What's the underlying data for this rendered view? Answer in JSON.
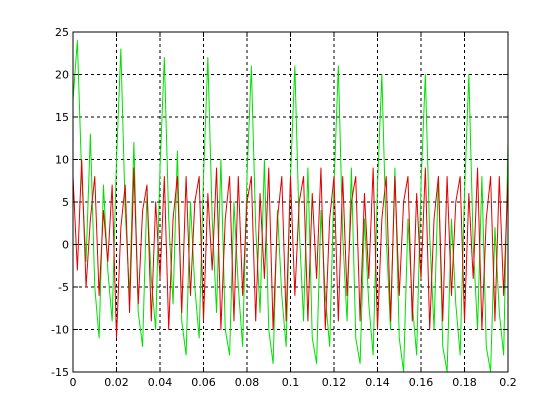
{
  "chart_data": {
    "type": "line",
    "title": "",
    "xlabel": "",
    "ylabel": "",
    "xlim": [
      0,
      0.2
    ],
    "ylim": [
      -15,
      25
    ],
    "grid": true,
    "grid_style": "dashed",
    "x_ticks": [
      "0",
      "0.02",
      "0.04",
      "0.06",
      "0.08",
      "0.1",
      "0.12",
      "0.14",
      "0.16",
      "0.18",
      "0.2"
    ],
    "y_ticks": [
      "-15",
      "-10",
      "-5",
      "0",
      "5",
      "10",
      "15",
      "20",
      "25"
    ],
    "x_tick_values": [
      0,
      0.02,
      0.04,
      0.06,
      0.08,
      0.1,
      0.12,
      0.14,
      0.16,
      0.18,
      0.2
    ],
    "y_tick_values": [
      -15,
      -10,
      -5,
      0,
      5,
      10,
      15,
      20,
      25
    ],
    "series": [
      {
        "color": "#00e000",
        "x": [
          0,
          0.002,
          0.004,
          0.006,
          0.008,
          0.01,
          0.012,
          0.014,
          0.016,
          0.018,
          0.02,
          0.022,
          0.024,
          0.026,
          0.028,
          0.03,
          0.032,
          0.034,
          0.036,
          0.038,
          0.04,
          0.042,
          0.044,
          0.046,
          0.048,
          0.05,
          0.052,
          0.054,
          0.056,
          0.058,
          0.06,
          0.062,
          0.064,
          0.066,
          0.068,
          0.07,
          0.072,
          0.074,
          0.076,
          0.078,
          0.08,
          0.082,
          0.084,
          0.086,
          0.088,
          0.09,
          0.092,
          0.094,
          0.096,
          0.098,
          0.1,
          0.102,
          0.104,
          0.106,
          0.108,
          0.11,
          0.112,
          0.114,
          0.116,
          0.118,
          0.12,
          0.122,
          0.124,
          0.126,
          0.128,
          0.13,
          0.132,
          0.134,
          0.136,
          0.138,
          0.14,
          0.142,
          0.144,
          0.146,
          0.148,
          0.15,
          0.152,
          0.154,
          0.156,
          0.158,
          0.16,
          0.162,
          0.164,
          0.166,
          0.168,
          0.17,
          0.172,
          0.174,
          0.176,
          0.178,
          0.18,
          0.182,
          0.184,
          0.186,
          0.188,
          0.19,
          0.192,
          0.194,
          0.196,
          0.198,
          0.2
        ],
        "y": [
          17,
          24,
          8,
          -2,
          13,
          -5,
          -11,
          7,
          -3,
          -9,
          10,
          23,
          4,
          -6,
          12,
          -8,
          -12,
          6,
          -4,
          -10,
          9,
          22,
          3,
          -7,
          11,
          -9,
          -13,
          5,
          -5,
          -11,
          8,
          22,
          3,
          -8,
          10,
          -10,
          -13,
          5,
          -5,
          -12,
          8,
          21,
          2,
          -8,
          10,
          -10,
          -14,
          4,
          -6,
          -12,
          8,
          21,
          2,
          -9,
          9,
          -11,
          -14,
          4,
          -6,
          -12,
          7,
          21,
          1,
          -9,
          9,
          -11,
          -14,
          3,
          -7,
          -13,
          7,
          20,
          1,
          -10,
          9,
          -11,
          -15,
          3,
          -7,
          -13,
          7,
          20,
          1,
          -10,
          8,
          -12,
          -15,
          3,
          -7,
          -13,
          6,
          20,
          0,
          -10,
          8,
          -12,
          -15,
          2,
          -8,
          -13,
          12
        ]
      },
      {
        "color": "#e00000",
        "x": [
          0,
          0.002,
          0.004,
          0.006,
          0.008,
          0.01,
          0.012,
          0.014,
          0.016,
          0.018,
          0.02,
          0.022,
          0.024,
          0.026,
          0.028,
          0.03,
          0.032,
          0.034,
          0.036,
          0.038,
          0.04,
          0.042,
          0.044,
          0.046,
          0.048,
          0.05,
          0.052,
          0.054,
          0.056,
          0.058,
          0.06,
          0.062,
          0.064,
          0.066,
          0.068,
          0.07,
          0.072,
          0.074,
          0.076,
          0.078,
          0.08,
          0.082,
          0.084,
          0.086,
          0.088,
          0.09,
          0.092,
          0.094,
          0.096,
          0.098,
          0.1,
          0.102,
          0.104,
          0.106,
          0.108,
          0.11,
          0.112,
          0.114,
          0.116,
          0.118,
          0.12,
          0.122,
          0.124,
          0.126,
          0.128,
          0.13,
          0.132,
          0.134,
          0.136,
          0.138,
          0.14,
          0.142,
          0.144,
          0.146,
          0.148,
          0.15,
          0.152,
          0.154,
          0.156,
          0.158,
          0.16,
          0.162,
          0.164,
          0.166,
          0.168,
          0.17,
          0.172,
          0.174,
          0.176,
          0.178,
          0.18,
          0.182,
          0.184,
          0.186,
          0.188,
          0.19,
          0.192,
          0.194,
          0.196,
          0.198,
          0.2
        ],
        "y": [
          8,
          -3,
          10,
          -5,
          3,
          8,
          -6,
          4,
          -2,
          7,
          -11,
          2,
          7,
          -8,
          9,
          -7,
          4,
          7,
          -9,
          5,
          -4,
          8,
          -10,
          3,
          8,
          -8,
          8,
          -6,
          5,
          8,
          -9,
          6,
          -3,
          9,
          -10,
          3,
          8,
          -9,
          8,
          -6,
          5,
          8,
          -9,
          6,
          -4,
          9,
          -10,
          3,
          8,
          -9,
          8,
          -6,
          5,
          8,
          -9,
          6,
          -4,
          9,
          -10,
          3,
          8,
          -9,
          8,
          -6,
          5,
          8,
          -9,
          6,
          -4,
          9,
          -10,
          3,
          8,
          -9,
          8,
          -6,
          5,
          8,
          -9,
          6,
          -4,
          9,
          -10,
          3,
          8,
          -9,
          8,
          -6,
          5,
          8,
          -9,
          6,
          -4,
          9,
          -10,
          3,
          8,
          -9,
          8,
          -6,
          8
        ]
      }
    ]
  }
}
